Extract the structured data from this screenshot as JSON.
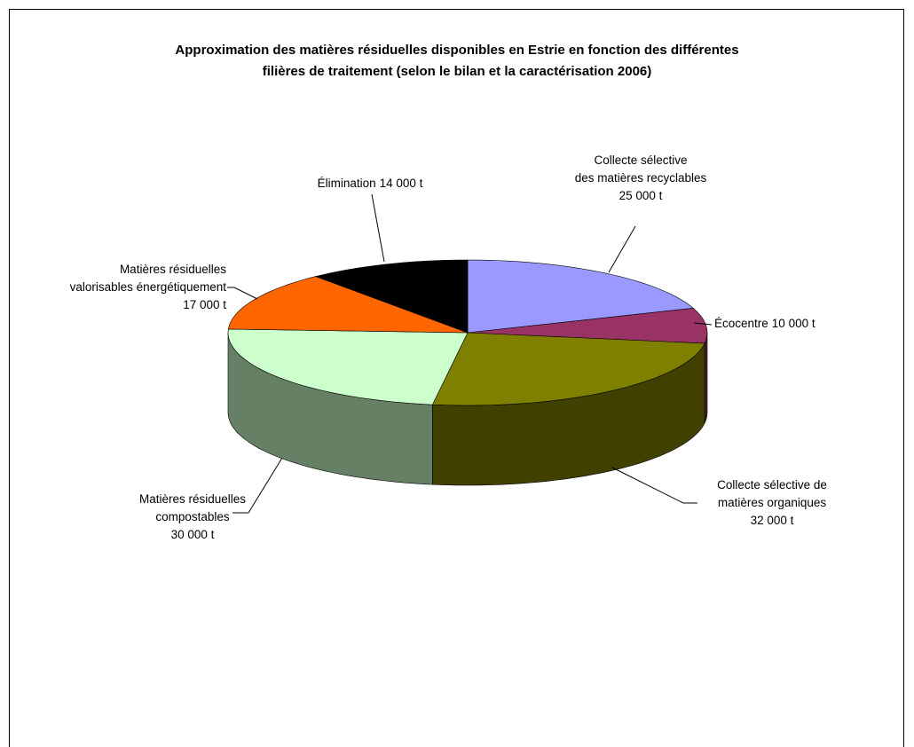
{
  "chart_data": {
    "type": "pie",
    "title": "Approximation des matières résiduelles disponibles en Estrie en fonction des différentes\nfilières de traitement (selon le bilan et la caractérisation 2006)",
    "categories": [
      "Collecte sélective\ndes matières recyclables",
      "Écocentre",
      "Collecte sélective de\nmatières organiques",
      "Matières résiduelles\ncompostables",
      "Matières résiduelles\nvalorisables énergétiquement",
      "Élimination"
    ],
    "values": [
      25000,
      10000,
      32000,
      30000,
      17000,
      14000
    ],
    "value_labels": [
      "25 000 t",
      "10 000 t",
      "32 000 t",
      "30 000 t",
      "17 000 t",
      "14 000 t"
    ],
    "colors": [
      "#9999ff",
      "#993366",
      "#808000",
      "#ccffcc",
      "#ff6600",
      "#000000"
    ]
  }
}
